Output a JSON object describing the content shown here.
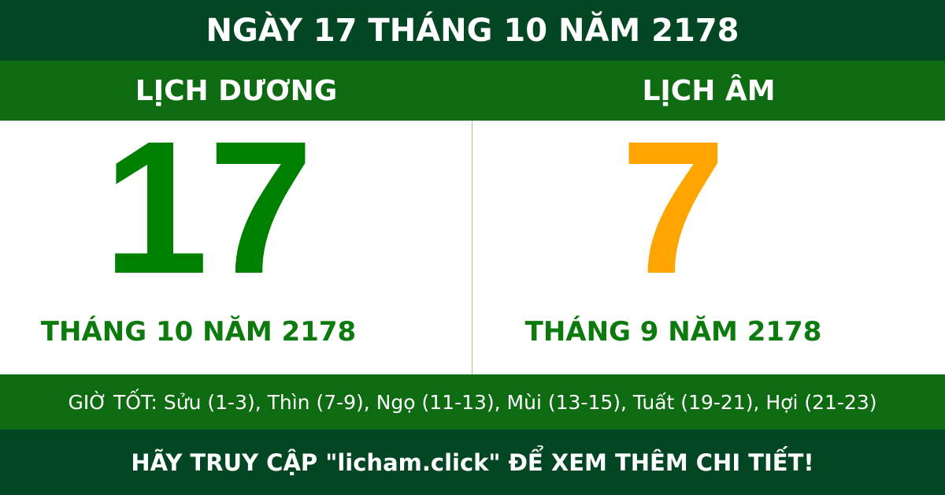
{
  "title": "NGÀY 17 THÁNG 10 NĂM 2178",
  "solar": {
    "heading": "LỊCH DƯƠNG",
    "day": "17",
    "month_year": "THÁNG 10 NĂM 2178"
  },
  "lunar": {
    "heading": "LỊCH ÂM",
    "day": "7",
    "month_year": "THÁNG 9 NĂM 2178"
  },
  "good_hours": "GIỜ TỐT: Sửu (1-3), Thìn (7-9), Ngọ (11-13), Mùi (13-15), Tuất (19-21), Hợi (21-23)",
  "footer": "HÃY TRUY CẬP \"licham.click\" ĐỂ XEM THÊM CHI TIẾT!",
  "colors": {
    "dark_green": "#034623",
    "green": "#0f6b12",
    "solar_day": "#008000",
    "lunar_day": "#ffa500"
  }
}
